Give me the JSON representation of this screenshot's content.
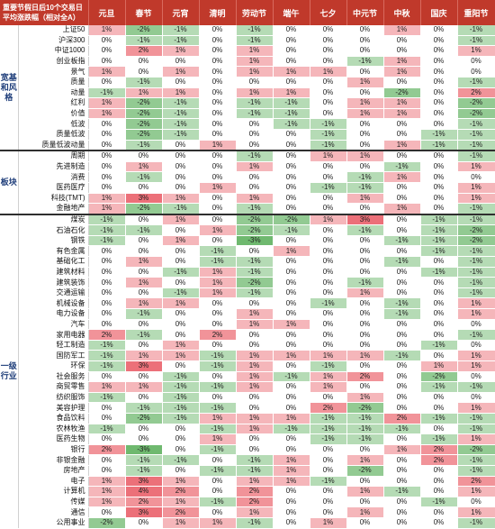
{
  "header": {
    "title": "重要节假日后10个交易日平均涨跌幅（相对全A）",
    "columns": [
      "元旦",
      "春节",
      "元宵",
      "清明",
      "劳动节",
      "端午",
      "七夕",
      "中元节",
      "中秋",
      "国庆",
      "重阳节"
    ]
  },
  "groups": [
    {
      "label": "宽基和风格",
      "rows": [
        {
          "name": "上证50",
          "values": [
            "1%",
            "-2%",
            "-1%",
            "0%",
            "-1%",
            "0%",
            "0%",
            "0%",
            "1%",
            "0%",
            "-1%"
          ]
        },
        {
          "name": "沪深300",
          "values": [
            "0%",
            "-1%",
            "-1%",
            "0%",
            "-1%",
            "0%",
            "0%",
            "0%",
            "0%",
            "0%",
            "-1%"
          ]
        },
        {
          "name": "中证1000",
          "values": [
            "0%",
            "2%",
            "1%",
            "0%",
            "1%",
            "0%",
            "0%",
            "0%",
            "0%",
            "0%",
            "1%"
          ]
        },
        {
          "name": "创业板指",
          "values": [
            "0%",
            "0%",
            "0%",
            "0%",
            "1%",
            "0%",
            "0%",
            "-1%",
            "1%",
            "0%",
            "0%"
          ]
        },
        {
          "name": "景气",
          "values": [
            "1%",
            "0%",
            "1%",
            "0%",
            "1%",
            "1%",
            "1%",
            "0%",
            "1%",
            "0%",
            "0%"
          ]
        },
        {
          "name": "质量",
          "values": [
            "0%",
            "-1%",
            "0%",
            "0%",
            "0%",
            "0%",
            "0%",
            "1%",
            "0%",
            "0%",
            "-1%"
          ]
        },
        {
          "name": "动量",
          "values": [
            "-1%",
            "1%",
            "1%",
            "0%",
            "1%",
            "1%",
            "0%",
            "0%",
            "-2%",
            "0%",
            "2%"
          ]
        },
        {
          "name": "红利",
          "values": [
            "1%",
            "-2%",
            "-1%",
            "0%",
            "-1%",
            "-1%",
            "0%",
            "1%",
            "1%",
            "0%",
            "-2%"
          ]
        },
        {
          "name": "价值",
          "values": [
            "1%",
            "-2%",
            "-1%",
            "0%",
            "-1%",
            "-1%",
            "0%",
            "1%",
            "1%",
            "0%",
            "-2%"
          ]
        },
        {
          "name": "低波",
          "values": [
            "0%",
            "-2%",
            "-1%",
            "0%",
            "0%",
            "-1%",
            "-1%",
            "0%",
            "0%",
            "0%",
            "-1%"
          ]
        },
        {
          "name": "质量低波",
          "values": [
            "0%",
            "-2%",
            "-1%",
            "0%",
            "0%",
            "0%",
            "-1%",
            "0%",
            "0%",
            "-1%",
            "-1%"
          ]
        },
        {
          "name": "质量低波动量",
          "values": [
            "0%",
            "-1%",
            "0%",
            "1%",
            "0%",
            "0%",
            "-1%",
            "0%",
            "1%",
            "-1%",
            "-1%"
          ]
        }
      ]
    },
    {
      "label": "板块",
      "rows": [
        {
          "name": "周期",
          "values": [
            "0%",
            "0%",
            "0%",
            "0%",
            "-1%",
            "0%",
            "1%",
            "1%",
            "0%",
            "0%",
            "-1%"
          ]
        },
        {
          "name": "先进制造",
          "values": [
            "0%",
            "1%",
            "0%",
            "0%",
            "1%",
            "0%",
            "0%",
            "0%",
            "-1%",
            "0%",
            "1%"
          ]
        },
        {
          "name": "消费",
          "values": [
            "0%",
            "-1%",
            "0%",
            "0%",
            "0%",
            "0%",
            "0%",
            "-1%",
            "1%",
            "0%",
            "0%"
          ]
        },
        {
          "name": "医药医疗",
          "values": [
            "0%",
            "0%",
            "0%",
            "1%",
            "0%",
            "0%",
            "-1%",
            "-1%",
            "0%",
            "0%",
            "1%"
          ]
        },
        {
          "name": "科技(TMT)",
          "values": [
            "1%",
            "3%",
            "1%",
            "0%",
            "1%",
            "0%",
            "0%",
            "1%",
            "0%",
            "0%",
            "1%"
          ]
        },
        {
          "name": "金融地产",
          "values": [
            "1%",
            "-2%",
            "-1%",
            "0%",
            "-1%",
            "0%",
            "0%",
            "0%",
            "1%",
            "0%",
            "-1%"
          ]
        }
      ]
    },
    {
      "label": "一级行业",
      "rows": [
        {
          "name": "煤炭",
          "values": [
            "-1%",
            "0%",
            "1%",
            "0%",
            "-2%",
            "-2%",
            "1%",
            "3%",
            "0%",
            "-1%",
            "-1%"
          ]
        },
        {
          "name": "石油石化",
          "values": [
            "-1%",
            "-1%",
            "0%",
            "1%",
            "-2%",
            "-1%",
            "0%",
            "-1%",
            "0%",
            "-1%",
            "-2%"
          ]
        },
        {
          "name": "钢铁",
          "values": [
            "-1%",
            "0%",
            "1%",
            "0%",
            "-3%",
            "0%",
            "0%",
            "0%",
            "-1%",
            "-1%",
            "-2%"
          ]
        },
        {
          "name": "有色金属",
          "values": [
            "0%",
            "0%",
            "0%",
            "-1%",
            "0%",
            "1%",
            "0%",
            "0%",
            "0%",
            "-1%",
            "-1%"
          ]
        },
        {
          "name": "基础化工",
          "values": [
            "0%",
            "1%",
            "0%",
            "-1%",
            "-1%",
            "0%",
            "0%",
            "0%",
            "-1%",
            "0%",
            "-1%"
          ]
        },
        {
          "name": "建筑材料",
          "values": [
            "0%",
            "0%",
            "-1%",
            "1%",
            "-1%",
            "0%",
            "0%",
            "0%",
            "0%",
            "-1%",
            "-1%"
          ]
        },
        {
          "name": "建筑装饰",
          "values": [
            "0%",
            "1%",
            "0%",
            "1%",
            "-2%",
            "0%",
            "0%",
            "-1%",
            "0%",
            "0%",
            "-1%"
          ]
        },
        {
          "name": "交通运输",
          "values": [
            "0%",
            "0%",
            "-1%",
            "1%",
            "-1%",
            "0%",
            "0%",
            "1%",
            "0%",
            "0%",
            "-1%"
          ]
        },
        {
          "name": "机械设备",
          "values": [
            "0%",
            "1%",
            "1%",
            "0%",
            "0%",
            "0%",
            "-1%",
            "0%",
            "-1%",
            "0%",
            "1%"
          ]
        },
        {
          "name": "电力设备",
          "values": [
            "0%",
            "-1%",
            "0%",
            "0%",
            "1%",
            "0%",
            "0%",
            "0%",
            "-1%",
            "0%",
            "1%"
          ]
        },
        {
          "name": "汽车",
          "values": [
            "0%",
            "0%",
            "0%",
            "0%",
            "1%",
            "1%",
            "0%",
            "0%",
            "0%",
            "0%",
            "0%"
          ]
        },
        {
          "name": "家用电器",
          "values": [
            "2%",
            "-1%",
            "0%",
            "2%",
            "0%",
            "0%",
            "0%",
            "0%",
            "0%",
            "0%",
            "-1%"
          ]
        },
        {
          "name": "轻工制造",
          "values": [
            "-1%",
            "0%",
            "1%",
            "0%",
            "0%",
            "0%",
            "0%",
            "0%",
            "0%",
            "-1%",
            "0%"
          ]
        },
        {
          "name": "国防军工",
          "values": [
            "-1%",
            "1%",
            "1%",
            "-1%",
            "1%",
            "1%",
            "1%",
            "1%",
            "-1%",
            "0%",
            "1%"
          ]
        },
        {
          "name": "环保",
          "values": [
            "-1%",
            "3%",
            "0%",
            "-1%",
            "1%",
            "0%",
            "-1%",
            "0%",
            "0%",
            "1%",
            "1%"
          ]
        },
        {
          "name": "社会服务",
          "values": [
            "0%",
            "0%",
            "-1%",
            "0%",
            "1%",
            "-1%",
            "1%",
            "2%",
            "0%",
            "-2%",
            "0%"
          ]
        },
        {
          "name": "商贸零售",
          "values": [
            "1%",
            "1%",
            "-1%",
            "-1%",
            "1%",
            "0%",
            "1%",
            "0%",
            "0%",
            "-1%",
            "-1%"
          ]
        },
        {
          "name": "纺织服饰",
          "values": [
            "-1%",
            "0%",
            "-1%",
            "0%",
            "0%",
            "0%",
            "0%",
            "1%",
            "0%",
            "0%",
            "0%"
          ]
        },
        {
          "name": "美容护理",
          "values": [
            "0%",
            "-1%",
            "-1%",
            "-1%",
            "0%",
            "0%",
            "2%",
            "-2%",
            "0%",
            "0%",
            "1%"
          ]
        },
        {
          "name": "食品饮料",
          "values": [
            "0%",
            "-2%",
            "-1%",
            "1%",
            "1%",
            "1%",
            "-1%",
            "-1%",
            "2%",
            "-1%",
            "-1%"
          ]
        },
        {
          "name": "农林牧渔",
          "values": [
            "-1%",
            "0%",
            "0%",
            "-1%",
            "1%",
            "-1%",
            "-1%",
            "-1%",
            "-1%",
            "0%",
            "-1%"
          ]
        },
        {
          "name": "医药生物",
          "values": [
            "0%",
            "0%",
            "0%",
            "1%",
            "0%",
            "0%",
            "-1%",
            "-1%",
            "0%",
            "-1%",
            "1%"
          ]
        },
        {
          "name": "银行",
          "values": [
            "2%",
            "-3%",
            "0%",
            "-1%",
            "0%",
            "0%",
            "0%",
            "0%",
            "1%",
            "2%",
            "-2%"
          ]
        },
        {
          "name": "非银金融",
          "values": [
            "0%",
            "-1%",
            "-1%",
            "0%",
            "-1%",
            "1%",
            "0%",
            "1%",
            "0%",
            "2%",
            "-1%"
          ]
        },
        {
          "name": "房地产",
          "values": [
            "0%",
            "-1%",
            "0%",
            "-1%",
            "-1%",
            "1%",
            "0%",
            "-2%",
            "0%",
            "0%",
            "-1%"
          ]
        },
        {
          "name": "电子",
          "values": [
            "1%",
            "3%",
            "1%",
            "0%",
            "1%",
            "1%",
            "-1%",
            "0%",
            "0%",
            "0%",
            "2%"
          ]
        },
        {
          "name": "计算机",
          "values": [
            "1%",
            "4%",
            "2%",
            "0%",
            "2%",
            "0%",
            "0%",
            "1%",
            "-1%",
            "0%",
            "1%"
          ]
        },
        {
          "name": "传媒",
          "values": [
            "1%",
            "2%",
            "1%",
            "-1%",
            "2%",
            "0%",
            "0%",
            "0%",
            "0%",
            "-1%",
            "0%"
          ]
        },
        {
          "name": "通信",
          "values": [
            "0%",
            "3%",
            "2%",
            "0%",
            "1%",
            "0%",
            "0%",
            "1%",
            "0%",
            "0%",
            "1%"
          ]
        },
        {
          "name": "公用事业",
          "values": [
            "-2%",
            "0%",
            "1%",
            "1%",
            "-1%",
            "0%",
            "1%",
            "0%",
            "0%",
            "0%",
            "-1%"
          ]
        }
      ]
    }
  ],
  "colors": {
    "header_bg": "#c0392b",
    "positive": "#e8505b",
    "negative": "#4fa94f",
    "group_label": "#1f3e7a"
  }
}
